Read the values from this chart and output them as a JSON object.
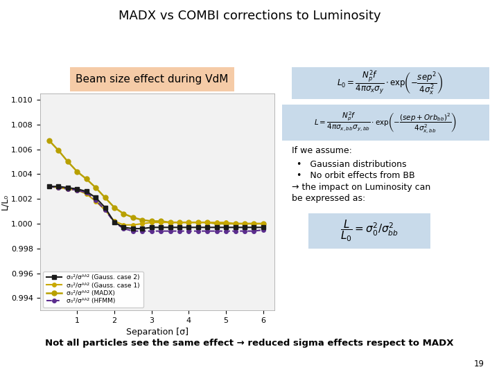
{
  "title": "MADX vs COMBI corrections to Luminosity",
  "subtitle": "Beam size effect during VdM",
  "xlabel": "Separation [σ]",
  "ylabel": "L/L₀",
  "xlim": [
    0,
    6.3
  ],
  "ylim": [
    0.993,
    1.0105
  ],
  "yticks": [
    0.994,
    0.996,
    0.998,
    1.0,
    1.002,
    1.004,
    1.006,
    1.008,
    1.01
  ],
  "xticks": [
    1,
    2,
    3,
    4,
    5,
    6
  ],
  "bg_color": "#ffffff",
  "plot_bg": "#f2f2f2",
  "formula_bg": "#c8daea",
  "subtitle_bg": "#f5cba7",
  "bottom_text": "Not all particles see the same effect → reduced sigma effects respect to MADX",
  "page_number": "19",
  "series": [
    {
      "name": "σ₀²/σᴬᴬ² (Gauss. case 2)",
      "color": "#1a1a1a",
      "linestyle": "-",
      "marker": "s",
      "markersize": 4,
      "linewidth": 1.5,
      "zorder": 4,
      "x": [
        0.25,
        0.5,
        0.75,
        1.0,
        1.25,
        1.5,
        1.75,
        2.0,
        2.25,
        2.5,
        2.75,
        3.0,
        3.25,
        3.5,
        3.75,
        4.0,
        4.25,
        4.5,
        4.75,
        5.0,
        5.25,
        5.5,
        5.75,
        6.0
      ],
      "y": [
        1.003,
        1.003,
        1.0029,
        1.0028,
        1.0026,
        1.0021,
        1.0013,
        1.0001,
        0.9997,
        0.9996,
        0.9996,
        0.9997,
        0.9997,
        0.9997,
        0.9997,
        0.9997,
        0.9997,
        0.9997,
        0.9997,
        0.9997,
        0.9997,
        0.9997,
        0.9997,
        0.9997
      ]
    },
    {
      "name": "σ₀²/σᴬᴬ² (Gauss. case 1)",
      "color": "#c8a800",
      "linestyle": "-",
      "marker": "o",
      "markersize": 4,
      "linewidth": 1.5,
      "zorder": 3,
      "x": [
        0.25,
        0.5,
        0.75,
        1.0,
        1.25,
        1.5,
        1.75,
        2.0,
        2.25,
        2.5,
        2.75,
        3.0,
        3.25,
        3.5,
        3.75,
        4.0,
        4.25,
        4.5,
        4.75,
        5.0,
        5.25,
        5.5,
        5.75,
        6.0
      ],
      "y": [
        1.003,
        1.0029,
        1.0028,
        1.0027,
        1.0024,
        1.0018,
        1.0011,
        1.0002,
        0.9999,
        0.9999,
        1.0,
        1.0001,
        1.0001,
        1.0001,
        1.0001,
        1.0001,
        1.0001,
        1.0001,
        1.0001,
        1.0001,
        1.0,
        1.0,
        1.0,
        1.0
      ]
    },
    {
      "name": "σ₀²/σᴬᴬ² (MADX)",
      "color": "#b8a000",
      "linestyle": "-",
      "marker": "o",
      "markersize": 5,
      "linewidth": 1.8,
      "zorder": 2,
      "x": [
        0.25,
        0.5,
        0.75,
        1.0,
        1.25,
        1.5,
        1.75,
        2.0,
        2.25,
        2.5,
        2.75,
        3.0,
        3.25,
        3.5,
        3.75,
        4.0,
        4.25,
        4.5,
        4.75,
        5.0,
        5.25,
        5.5,
        5.75,
        6.0
      ],
      "y": [
        1.0067,
        1.0059,
        1.005,
        1.0042,
        1.0036,
        1.0029,
        1.0021,
        1.0013,
        1.0008,
        1.0005,
        1.0003,
        1.0002,
        1.0002,
        1.0001,
        1.0001,
        1.0001,
        1.0001,
        1.0001,
        1.0,
        1.0,
        1.0,
        1.0,
        1.0,
        1.0
      ]
    },
    {
      "name": "σ₀²/σᴬᴬ² (HFMM)",
      "color": "#5b2d8e",
      "linestyle": "--",
      "marker": "o",
      "markersize": 4,
      "linewidth": 1.5,
      "zorder": 3,
      "x": [
        0.25,
        0.5,
        0.75,
        1.0,
        1.25,
        1.5,
        1.75,
        2.0,
        2.25,
        2.5,
        2.75,
        3.0,
        3.25,
        3.5,
        3.75,
        4.0,
        4.25,
        4.5,
        4.75,
        5.0,
        5.25,
        5.5,
        5.75,
        6.0
      ],
      "y": [
        1.003,
        1.0029,
        1.0028,
        1.0027,
        1.0025,
        1.0019,
        1.0011,
        1.0001,
        0.9996,
        0.9994,
        0.9994,
        0.9994,
        0.9994,
        0.9994,
        0.9994,
        0.9994,
        0.9994,
        0.9994,
        0.9994,
        0.9994,
        0.9994,
        0.9994,
        0.9994,
        0.9995
      ]
    }
  ]
}
